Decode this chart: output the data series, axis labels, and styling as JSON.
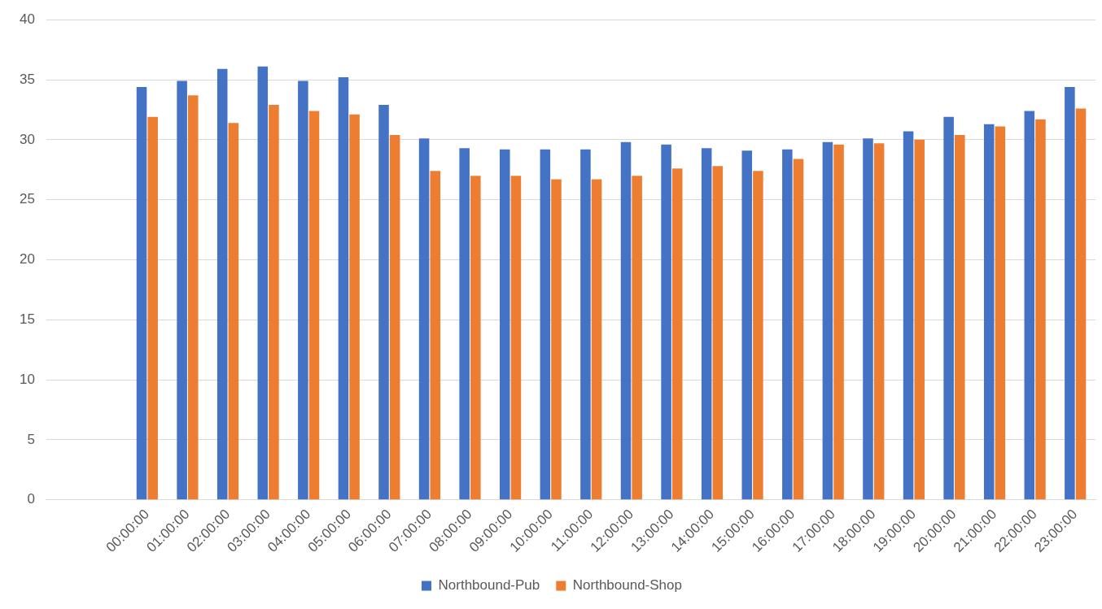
{
  "chart_data": {
    "type": "bar",
    "categories": [
      null,
      null,
      "00:00:00",
      "01:00:00",
      "02:00:00",
      "03:00:00",
      "04:00:00",
      "05:00:00",
      "06:00:00",
      "07:00:00",
      "08:00:00",
      "09:00:00",
      "10:00:00",
      "11:00:00",
      "12:00:00",
      "13:00:00",
      "14:00:00",
      "15:00:00",
      "16:00:00",
      "17:00:00",
      "18:00:00",
      "19:00:00",
      "20:00:00",
      "21:00:00",
      "22:00:00",
      "23:00:00"
    ],
    "series": [
      {
        "name": "Northbound-Pub",
        "color": "#4472c4",
        "values": [
          null,
          null,
          34.4,
          34.9,
          35.9,
          36.1,
          34.9,
          35.2,
          32.9,
          30.1,
          29.3,
          29.2,
          29.2,
          29.2,
          29.8,
          29.6,
          29.3,
          29.1,
          29.2,
          29.8,
          30.1,
          30.7,
          31.9,
          31.3,
          32.4,
          34.4
        ]
      },
      {
        "name": "Northbound-Shop",
        "color": "#ed7d31",
        "values": [
          null,
          null,
          31.9,
          33.7,
          31.4,
          32.9,
          32.4,
          32.1,
          30.4,
          27.4,
          27.0,
          27.0,
          26.7,
          26.7,
          27.0,
          27.6,
          27.8,
          27.4,
          28.4,
          29.6,
          29.7,
          30.0,
          30.4,
          31.1,
          31.7,
          32.6
        ]
      }
    ],
    "ylim": [
      0,
      40
    ],
    "yticks": [
      0,
      5,
      10,
      15,
      20,
      25,
      30,
      35,
      40
    ],
    "grid": "y",
    "legend": "bottom"
  }
}
